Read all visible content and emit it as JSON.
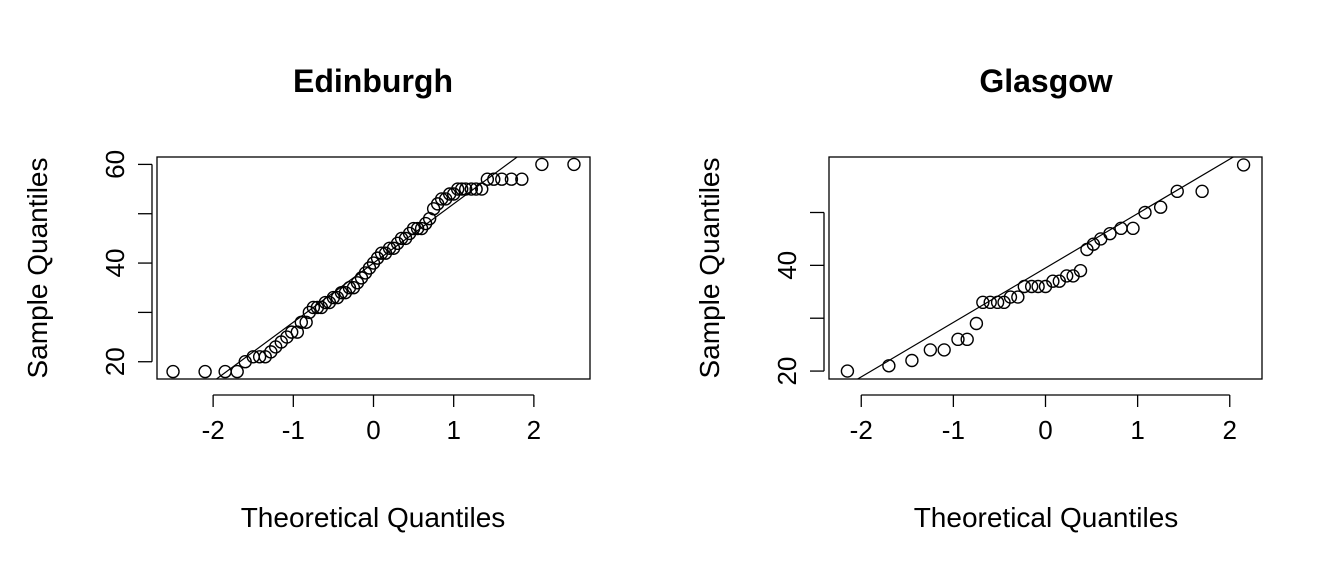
{
  "chart_data": [
    {
      "type": "scatter",
      "title": "Edinburgh",
      "xlabel": "Theoretical Quantiles",
      "ylabel": "Sample Quantiles",
      "xlim": [
        -2.7,
        2.7
      ],
      "ylim": [
        16.5,
        61.5
      ],
      "xticks": [
        -2,
        -1,
        0,
        1,
        2
      ],
      "yticks": [
        20,
        30,
        40,
        50,
        60
      ],
      "ytick_labels": [
        "20",
        "",
        "40",
        "",
        "60"
      ],
      "reference_line": {
        "intercept": 40,
        "slope": 12
      },
      "points": [
        [
          -2.5,
          18
        ],
        [
          -2.1,
          18
        ],
        [
          -1.85,
          18
        ],
        [
          -1.7,
          18
        ],
        [
          -1.6,
          20
        ],
        [
          -1.5,
          21
        ],
        [
          -1.42,
          21
        ],
        [
          -1.35,
          21
        ],
        [
          -1.28,
          22
        ],
        [
          -1.22,
          23
        ],
        [
          -1.15,
          24
        ],
        [
          -1.08,
          25
        ],
        [
          -1.02,
          26
        ],
        [
          -0.95,
          26
        ],
        [
          -0.9,
          28
        ],
        [
          -0.84,
          28
        ],
        [
          -0.8,
          30
        ],
        [
          -0.75,
          31
        ],
        [
          -0.7,
          31
        ],
        [
          -0.65,
          31
        ],
        [
          -0.6,
          32
        ],
        [
          -0.55,
          32
        ],
        [
          -0.5,
          33
        ],
        [
          -0.45,
          33
        ],
        [
          -0.4,
          34
        ],
        [
          -0.35,
          34
        ],
        [
          -0.3,
          35
        ],
        [
          -0.25,
          35
        ],
        [
          -0.2,
          36
        ],
        [
          -0.15,
          37
        ],
        [
          -0.1,
          38
        ],
        [
          -0.05,
          39
        ],
        [
          0,
          40
        ],
        [
          0.05,
          41
        ],
        [
          0.1,
          42
        ],
        [
          0.15,
          42
        ],
        [
          0.2,
          43
        ],
        [
          0.25,
          43
        ],
        [
          0.3,
          44
        ],
        [
          0.35,
          45
        ],
        [
          0.4,
          45
        ],
        [
          0.45,
          46
        ],
        [
          0.5,
          47
        ],
        [
          0.55,
          47
        ],
        [
          0.6,
          47
        ],
        [
          0.65,
          48
        ],
        [
          0.7,
          49
        ],
        [
          0.75,
          51
        ],
        [
          0.8,
          52
        ],
        [
          0.85,
          53
        ],
        [
          0.9,
          53
        ],
        [
          0.95,
          54
        ],
        [
          1.0,
          54
        ],
        [
          1.05,
          55
        ],
        [
          1.1,
          55
        ],
        [
          1.15,
          55
        ],
        [
          1.22,
          55
        ],
        [
          1.28,
          55
        ],
        [
          1.35,
          55
        ],
        [
          1.42,
          57
        ],
        [
          1.5,
          57
        ],
        [
          1.6,
          57
        ],
        [
          1.72,
          57
        ],
        [
          1.85,
          57
        ],
        [
          2.1,
          60
        ],
        [
          2.5,
          60
        ]
      ]
    },
    {
      "type": "scatter",
      "title": "Glasgow",
      "xlabel": "Theoretical Quantiles",
      "ylabel": "Sample Quantiles",
      "xlim": [
        -2.35,
        2.35
      ],
      "ylim": [
        18.5,
        60.5
      ],
      "xticks": [
        -2,
        -1,
        0,
        1,
        2
      ],
      "yticks": [
        20,
        30,
        40,
        50
      ],
      "ytick_labels": [
        "20",
        "",
        "40",
        ""
      ],
      "reference_line": {
        "intercept": 39.5,
        "slope": 10.3
      },
      "points": [
        [
          -2.15,
          20
        ],
        [
          -1.7,
          21
        ],
        [
          -1.45,
          22
        ],
        [
          -1.25,
          24
        ],
        [
          -1.1,
          24
        ],
        [
          -0.95,
          26
        ],
        [
          -0.85,
          26
        ],
        [
          -0.75,
          29
        ],
        [
          -0.68,
          33
        ],
        [
          -0.6,
          33
        ],
        [
          -0.52,
          33
        ],
        [
          -0.45,
          33
        ],
        [
          -0.38,
          34
        ],
        [
          -0.3,
          34
        ],
        [
          -0.23,
          36
        ],
        [
          -0.15,
          36
        ],
        [
          -0.08,
          36
        ],
        [
          0,
          36
        ],
        [
          0.08,
          37
        ],
        [
          0.15,
          37
        ],
        [
          0.23,
          38
        ],
        [
          0.3,
          38
        ],
        [
          0.38,
          39
        ],
        [
          0.45,
          43
        ],
        [
          0.52,
          44
        ],
        [
          0.6,
          45
        ],
        [
          0.7,
          46
        ],
        [
          0.82,
          47
        ],
        [
          0.95,
          47
        ],
        [
          1.08,
          50
        ],
        [
          1.25,
          51
        ],
        [
          1.43,
          54
        ],
        [
          1.7,
          54
        ],
        [
          2.15,
          59
        ]
      ]
    }
  ]
}
